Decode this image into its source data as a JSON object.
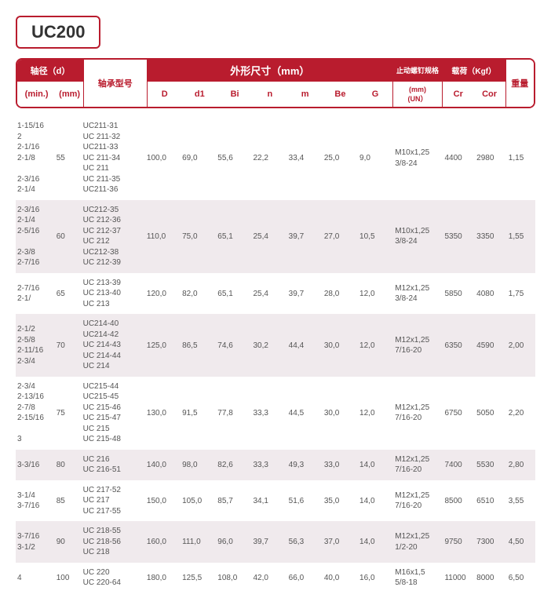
{
  "title": "UC200",
  "header": {
    "shaft_dia": "轴径（d）",
    "min": "(min.)",
    "mm": "(mm)",
    "model": "轴承型号",
    "dim_group": "外形尺寸（mm）",
    "D": "D",
    "d1": "d1",
    "Bi": "Bi",
    "n": "n",
    "m": "m",
    "Be": "Be",
    "G": "G",
    "bolt": "止动螺钉规格",
    "bolt_sub": "(mm)\n(UN）",
    "load": "载荷（Kgf）",
    "Cr": "Cr",
    "Cor": "Cor",
    "wt": "重量"
  },
  "rows": [
    {
      "alt": false,
      "min": "1-15/16\n2\n2-1/16\n2-1/8\n\n2-3/16\n2-1/4",
      "mm": "55",
      "model": "UC211-31\nUC 211-32\nUC211-33\nUC 211-34\nUC 211\nUC 211-35\nUC211-36",
      "D": "100,0",
      "d1": "69,0",
      "Bi": "55,6",
      "n": "22,2",
      "m": "33,4",
      "Be": "25,0",
      "G": "9,0",
      "bolt": "M10x1,25\n3/8-24",
      "Cr": "4400",
      "Cor": "2980",
      "wt": "1,15"
    },
    {
      "alt": true,
      "min": "2-3/16\n2-1/4\n2-5/16\n\n2-3/8\n2-7/16",
      "mm": "60",
      "model": "UC212-35\nUC 212-36\nUC 212-37\nUC 212\nUC212-38\nUC 212-39",
      "D": "110,0",
      "d1": "75,0",
      "Bi": "65,1",
      "n": "25,4",
      "m": "39,7",
      "Be": "27,0",
      "G": "10,5",
      "bolt": "M10x1,25\n3/8-24",
      "Cr": "5350",
      "Cor": "3350",
      "wt": "1,55"
    },
    {
      "alt": false,
      "min": "2-7/16\n2-1/",
      "mm": "65",
      "model": "UC 213-39\nUC 213-40\nUC 213",
      "D": "120,0",
      "d1": "82,0",
      "Bi": "65,1",
      "n": "25,4",
      "m": "39,7",
      "Be": "28,0",
      "G": "12,0",
      "bolt": "M12x1,25\n3/8-24",
      "Cr": "5850",
      "Cor": "4080",
      "wt": "1,75"
    },
    {
      "alt": true,
      "min": "2-1/2\n2-5/8\n2-11/16\n2-3/4",
      "mm": "70",
      "model": "UC214-40\nUC214-42\nUC 214-43\nUC 214-44\nUC 214",
      "D": "125,0",
      "d1": "86,5",
      "Bi": "74,6",
      "n": "30,2",
      "m": "44,4",
      "Be": "30,0",
      "G": "12,0",
      "bolt": "M12x1,25\n7/16-20",
      "Cr": "6350",
      "Cor": "4590",
      "wt": "2,00"
    },
    {
      "alt": false,
      "min": "2-3/4\n2-13/16\n2-7/8\n2-15/16\n\n3",
      "mm": "75",
      "model": "UC215-44\nUC215-45\nUC 215-46\nUC 215-47\nUC 215\nUC 215-48",
      "D": "130,0",
      "d1": "91,5",
      "Bi": "77,8",
      "n": "33,3",
      "m": "44,5",
      "Be": "30,0",
      "G": "12,0",
      "bolt": "M12x1,25\n7/16-20",
      "Cr": "6750",
      "Cor": "5050",
      "wt": "2,20"
    },
    {
      "alt": true,
      "min": "3-3/16",
      "mm": "80",
      "model": "UC 216\nUC 216-51",
      "D": "140,0",
      "d1": "98,0",
      "Bi": "82,6",
      "n": "33,3",
      "m": "49,3",
      "Be": "33,0",
      "G": "14,0",
      "bolt": "M12x1,25\n7/16-20",
      "Cr": "7400",
      "Cor": "5530",
      "wt": "2,80"
    },
    {
      "alt": false,
      "min": "3-1/4\n3-7/16",
      "mm": "85",
      "model": "UC 217-52\nUC 217\nUC 217-55",
      "D": "150,0",
      "d1": "105,0",
      "Bi": "85,7",
      "n": "34,1",
      "m": "51,6",
      "Be": "35,0",
      "G": "14,0",
      "bolt": "M12x1,25\n7/16-20",
      "Cr": "8500",
      "Cor": "6510",
      "wt": "3,55"
    },
    {
      "alt": true,
      "min": "3-7/16\n3-1/2",
      "mm": "90",
      "model": "UC 218-55\nUC 218-56\nUC 218",
      "D": "160,0",
      "d1": "111,0",
      "Bi": "96,0",
      "n": "39,7",
      "m": "56,3",
      "Be": "37,0",
      "G": "14,0",
      "bolt": "M12x1,25\n1/2-20",
      "Cr": "9750",
      "Cor": "7300",
      "wt": "4,50"
    },
    {
      "alt": false,
      "min": "4",
      "mm": "100",
      "model": "UC 220\nUC 220-64",
      "D": "180,0",
      "d1": "125,5",
      "Bi": "108,0",
      "n": "42,0",
      "m": "66,0",
      "Be": "40,0",
      "G": "16,0",
      "bolt": "M16x1,5\n5/8-18",
      "Cr": "11000",
      "Cor": "8000",
      "wt": "6,50"
    }
  ]
}
